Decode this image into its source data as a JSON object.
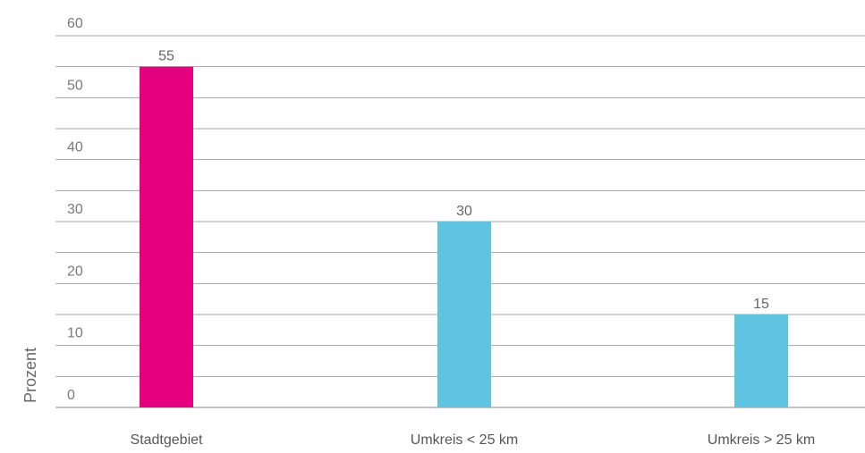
{
  "chart_data": {
    "type": "bar",
    "ylabel": "Prozent",
    "ylim": [
      0,
      60
    ],
    "yticks": [
      "0",
      "10",
      "20",
      "30",
      "40",
      "50",
      "60"
    ],
    "categories": [
      "Stadtgebiet",
      "Umkreis < 25 km",
      "Umkreis > 25 km"
    ],
    "values": [
      55,
      30,
      15
    ],
    "value_labels": [
      "55",
      "30",
      "15"
    ],
    "colors": [
      "#e5007d",
      "#5fc4df",
      "#5fc4df"
    ],
    "grid": true,
    "legend": "none"
  }
}
